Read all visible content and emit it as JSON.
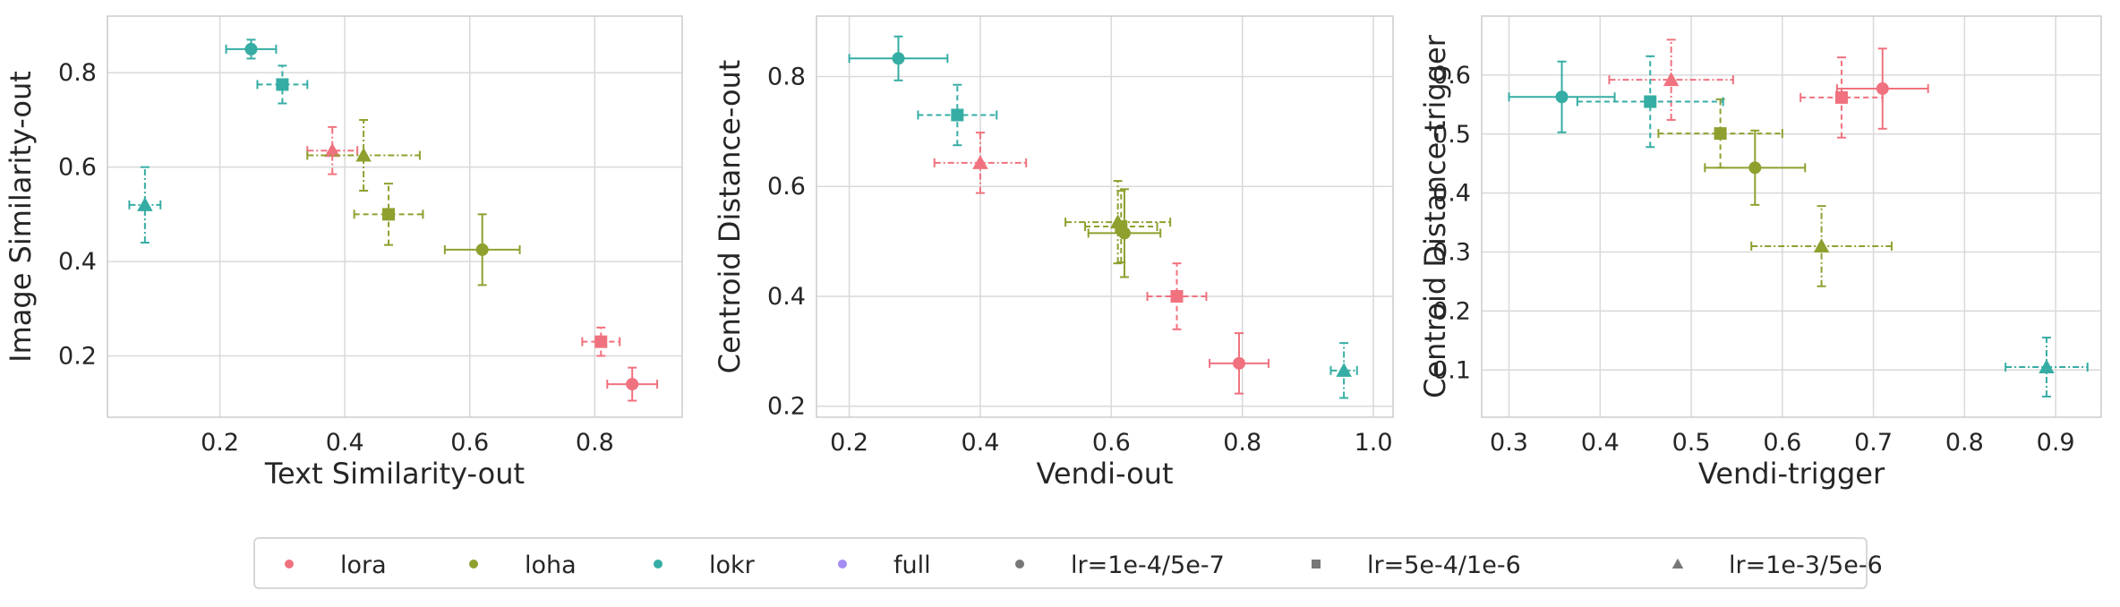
{
  "colors": {
    "lora": "#f0727f",
    "loha": "#8fa02f",
    "lokr": "#36ada4",
    "full": "#a48cf4",
    "neutral": "#777777",
    "grid": "#d9d9d9",
    "frame": "#cccccc"
  },
  "chart_data": [
    {
      "type": "scatter",
      "xlabel": "Text Similarity-out",
      "ylabel": "Image Similarity-out",
      "xlim": [
        0.02,
        0.94
      ],
      "ylim": [
        0.07,
        0.92
      ],
      "xticks": [
        0.2,
        0.4,
        0.6,
        0.8
      ],
      "xtick_labels": [
        "0.2",
        "0.4",
        "0.6",
        "0.8"
      ],
      "yticks": [
        0.2,
        0.4,
        0.6,
        0.8
      ],
      "ytick_labels": [
        "0.2",
        "0.4",
        "0.6",
        "0.8"
      ],
      "grid": true,
      "points": [
        {
          "method": "lora",
          "lr": "lr=1e-4/5e-7",
          "x": 0.86,
          "y": 0.14,
          "xerr": 0.04,
          "yerr": 0.035
        },
        {
          "method": "lora",
          "lr": "lr=5e-4/1e-6",
          "x": 0.81,
          "y": 0.23,
          "xerr": 0.03,
          "yerr": 0.03
        },
        {
          "method": "lora",
          "lr": "lr=1e-3/5e-6",
          "x": 0.38,
          "y": 0.635,
          "xerr": 0.04,
          "yerr": 0.05
        },
        {
          "method": "loha",
          "lr": "lr=1e-4/5e-7",
          "x": 0.62,
          "y": 0.425,
          "xerr": 0.06,
          "yerr": 0.075
        },
        {
          "method": "loha",
          "lr": "lr=5e-4/1e-6",
          "x": 0.47,
          "y": 0.5,
          "xerr": 0.055,
          "yerr": 0.065
        },
        {
          "method": "loha",
          "lr": "lr=1e-3/5e-6",
          "x": 0.43,
          "y": 0.625,
          "xerr": 0.09,
          "yerr": 0.075
        },
        {
          "method": "lokr",
          "lr": "lr=1e-4/5e-7",
          "x": 0.25,
          "y": 0.85,
          "xerr": 0.04,
          "yerr": 0.02
        },
        {
          "method": "lokr",
          "lr": "lr=5e-4/1e-6",
          "x": 0.3,
          "y": 0.775,
          "xerr": 0.04,
          "yerr": 0.04
        },
        {
          "method": "lokr",
          "lr": "lr=1e-3/5e-6",
          "x": 0.08,
          "y": 0.52,
          "xerr": 0.025,
          "yerr": 0.08
        }
      ]
    },
    {
      "type": "scatter",
      "xlabel": "Vendi-out",
      "ylabel": "Centroid Distance-out",
      "xlim": [
        0.15,
        1.03
      ],
      "ylim": [
        0.18,
        0.91
      ],
      "xticks": [
        0.2,
        0.4,
        0.6,
        0.8,
        1.0
      ],
      "xtick_labels": [
        "0.2",
        "0.4",
        "0.6",
        "0.8",
        "1.0"
      ],
      "yticks": [
        0.2,
        0.4,
        0.6,
        0.8
      ],
      "ytick_labels": [
        "0.2",
        "0.4",
        "0.6",
        "0.8"
      ],
      "grid": true,
      "points": [
        {
          "method": "lora",
          "lr": "lr=1e-4/5e-7",
          "x": 0.795,
          "y": 0.278,
          "xerr": 0.045,
          "yerr": 0.055
        },
        {
          "method": "lora",
          "lr": "lr=5e-4/1e-6",
          "x": 0.7,
          "y": 0.4,
          "xerr": 0.045,
          "yerr": 0.06
        },
        {
          "method": "lora",
          "lr": "lr=1e-3/5e-6",
          "x": 0.4,
          "y": 0.643,
          "xerr": 0.07,
          "yerr": 0.055
        },
        {
          "method": "loha",
          "lr": "lr=1e-4/5e-7",
          "x": 0.62,
          "y": 0.515,
          "xerr": 0.055,
          "yerr": 0.08
        },
        {
          "method": "loha",
          "lr": "lr=5e-4/1e-6",
          "x": 0.615,
          "y": 0.527,
          "xerr": 0.055,
          "yerr": 0.065
        },
        {
          "method": "loha",
          "lr": "lr=1e-3/5e-6",
          "x": 0.61,
          "y": 0.535,
          "xerr": 0.08,
          "yerr": 0.075
        },
        {
          "method": "lokr",
          "lr": "lr=1e-4/5e-7",
          "x": 0.275,
          "y": 0.833,
          "xerr": 0.075,
          "yerr": 0.04
        },
        {
          "method": "lokr",
          "lr": "lr=5e-4/1e-6",
          "x": 0.365,
          "y": 0.73,
          "xerr": 0.06,
          "yerr": 0.055
        },
        {
          "method": "lokr",
          "lr": "lr=1e-3/5e-6",
          "x": 0.955,
          "y": 0.265,
          "xerr": 0.02,
          "yerr": 0.05
        }
      ]
    },
    {
      "type": "scatter",
      "xlabel": "Vendi-trigger",
      "ylabel": "Centroid Distance-trigger",
      "xlim": [
        0.27,
        0.95
      ],
      "ylim": [
        0.02,
        0.7
      ],
      "xticks": [
        0.3,
        0.4,
        0.5,
        0.6,
        0.7,
        0.8,
        0.9
      ],
      "xtick_labels": [
        "0.3",
        "0.4",
        "0.5",
        "0.6",
        "0.7",
        "0.8",
        "0.9"
      ],
      "yticks": [
        0.1,
        0.2,
        0.3,
        0.4,
        0.5,
        0.6
      ],
      "ytick_labels": [
        "0.1",
        "0.2",
        "0.3",
        "0.4",
        "0.5",
        "0.6"
      ],
      "grid": true,
      "points": [
        {
          "method": "lora",
          "lr": "lr=1e-4/5e-7",
          "x": 0.71,
          "y": 0.577,
          "xerr": 0.05,
          "yerr": 0.068
        },
        {
          "method": "lora",
          "lr": "lr=5e-4/1e-6",
          "x": 0.665,
          "y": 0.562,
          "xerr": 0.045,
          "yerr": 0.068
        },
        {
          "method": "lora",
          "lr": "lr=1e-3/5e-6",
          "x": 0.478,
          "y": 0.592,
          "xerr": 0.068,
          "yerr": 0.068
        },
        {
          "method": "loha",
          "lr": "lr=1e-4/5e-7",
          "x": 0.57,
          "y": 0.443,
          "xerr": 0.055,
          "yerr": 0.063
        },
        {
          "method": "loha",
          "lr": "lr=5e-4/1e-6",
          "x": 0.532,
          "y": 0.501,
          "xerr": 0.068,
          "yerr": 0.058
        },
        {
          "method": "loha",
          "lr": "lr=1e-3/5e-6",
          "x": 0.643,
          "y": 0.31,
          "xerr": 0.077,
          "yerr": 0.068
        },
        {
          "method": "lokr",
          "lr": "lr=1e-4/5e-7",
          "x": 0.358,
          "y": 0.563,
          "xerr": 0.058,
          "yerr": 0.06
        },
        {
          "method": "lokr",
          "lr": "lr=5e-4/1e-6",
          "x": 0.455,
          "y": 0.555,
          "xerr": 0.08,
          "yerr": 0.077
        },
        {
          "method": "lokr",
          "lr": "lr=1e-3/5e-6",
          "x": 0.89,
          "y": 0.105,
          "xerr": 0.045,
          "yerr": 0.05
        }
      ]
    }
  ],
  "legend": {
    "placement": "bottom-center",
    "items": [
      {
        "label": "lora",
        "color": "#f0727f",
        "marker": "circle"
      },
      {
        "label": "loha",
        "color": "#8fa02f",
        "marker": "circle"
      },
      {
        "label": "lokr",
        "color": "#36ada4",
        "marker": "circle"
      },
      {
        "label": "full",
        "color": "#a48cf4",
        "marker": "circle"
      },
      {
        "label": "lr=1e-4/5e-7",
        "color": "#777777",
        "marker": "circle"
      },
      {
        "label": "lr=5e-4/1e-6",
        "color": "#777777",
        "marker": "square"
      },
      {
        "label": "lr=1e-3/5e-6",
        "color": "#777777",
        "marker": "triangle"
      }
    ]
  }
}
